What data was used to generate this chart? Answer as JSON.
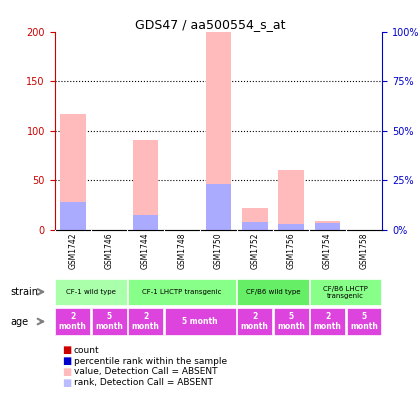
{
  "title": "GDS47 / aa500554_s_at",
  "samples": [
    "GSM1742",
    "GSM1746",
    "GSM1744",
    "GSM1748",
    "GSM1750",
    "GSM1752",
    "GSM1756",
    "GSM1754",
    "GSM1758"
  ],
  "pink_bars": [
    117,
    0,
    91,
    0,
    200,
    22,
    60,
    9,
    0
  ],
  "blue_bars": [
    28,
    0,
    15,
    0,
    46,
    8,
    6,
    7,
    0
  ],
  "red_bars": [
    0,
    0,
    0,
    0,
    0,
    0,
    0,
    0,
    0
  ],
  "dark_blue_bars": [
    0,
    0,
    0,
    0,
    0,
    0,
    0,
    0,
    0
  ],
  "ylim_left": [
    0,
    200
  ],
  "ylim_right": [
    0,
    100
  ],
  "yticks_left": [
    0,
    50,
    100,
    150,
    200
  ],
  "yticks_right": [
    0,
    25,
    50,
    75,
    100
  ],
  "ytick_labels_left": [
    "0",
    "50",
    "100",
    "150",
    "200"
  ],
  "ytick_labels_right": [
    "0%",
    "25%",
    "50%",
    "75%",
    "100%"
  ],
  "strain_groups": [
    {
      "label": "CF-1 wild type",
      "start": 0,
      "end": 2,
      "color": "#aaffaa"
    },
    {
      "label": "CF-1 LHCTP transgenic",
      "start": 2,
      "end": 5,
      "color": "#88ff88"
    },
    {
      "label": "CF/B6 wild type",
      "start": 5,
      "end": 7,
      "color": "#66ee66"
    },
    {
      "label": "CF/B6 LHCTP\ntransgenic",
      "start": 7,
      "end": 9,
      "color": "#88ff88"
    }
  ],
  "age_groups": [
    {
      "label": "2\nmonth",
      "start": 0,
      "end": 1,
      "color": "#dd44dd"
    },
    {
      "label": "5\nmonth",
      "start": 1,
      "end": 2,
      "color": "#dd44dd"
    },
    {
      "label": "2\nmonth",
      "start": 2,
      "end": 3,
      "color": "#dd44dd"
    },
    {
      "label": "5 month",
      "start": 3,
      "end": 5,
      "color": "#dd44dd"
    },
    {
      "label": "2\nmonth",
      "start": 5,
      "end": 6,
      "color": "#dd44dd"
    },
    {
      "label": "5\nmonth",
      "start": 6,
      "end": 7,
      "color": "#dd44dd"
    },
    {
      "label": "2\nmonth",
      "start": 7,
      "end": 8,
      "color": "#dd44dd"
    },
    {
      "label": "5\nmonth",
      "start": 8,
      "end": 9,
      "color": "#dd44dd"
    }
  ],
  "legend_items": [
    {
      "color": "#cc0000",
      "label": "count"
    },
    {
      "color": "#0000cc",
      "label": "percentile rank within the sample"
    },
    {
      "color": "#ffbbbb",
      "label": "value, Detection Call = ABSENT"
    },
    {
      "color": "#bbbbff",
      "label": "rank, Detection Call = ABSENT"
    }
  ],
  "bg_color": "#ffffff",
  "plot_bg_color": "#ffffff",
  "grid_color": "#000000",
  "axis_color_left": "#cc0000",
  "axis_color_right": "#0000cc"
}
